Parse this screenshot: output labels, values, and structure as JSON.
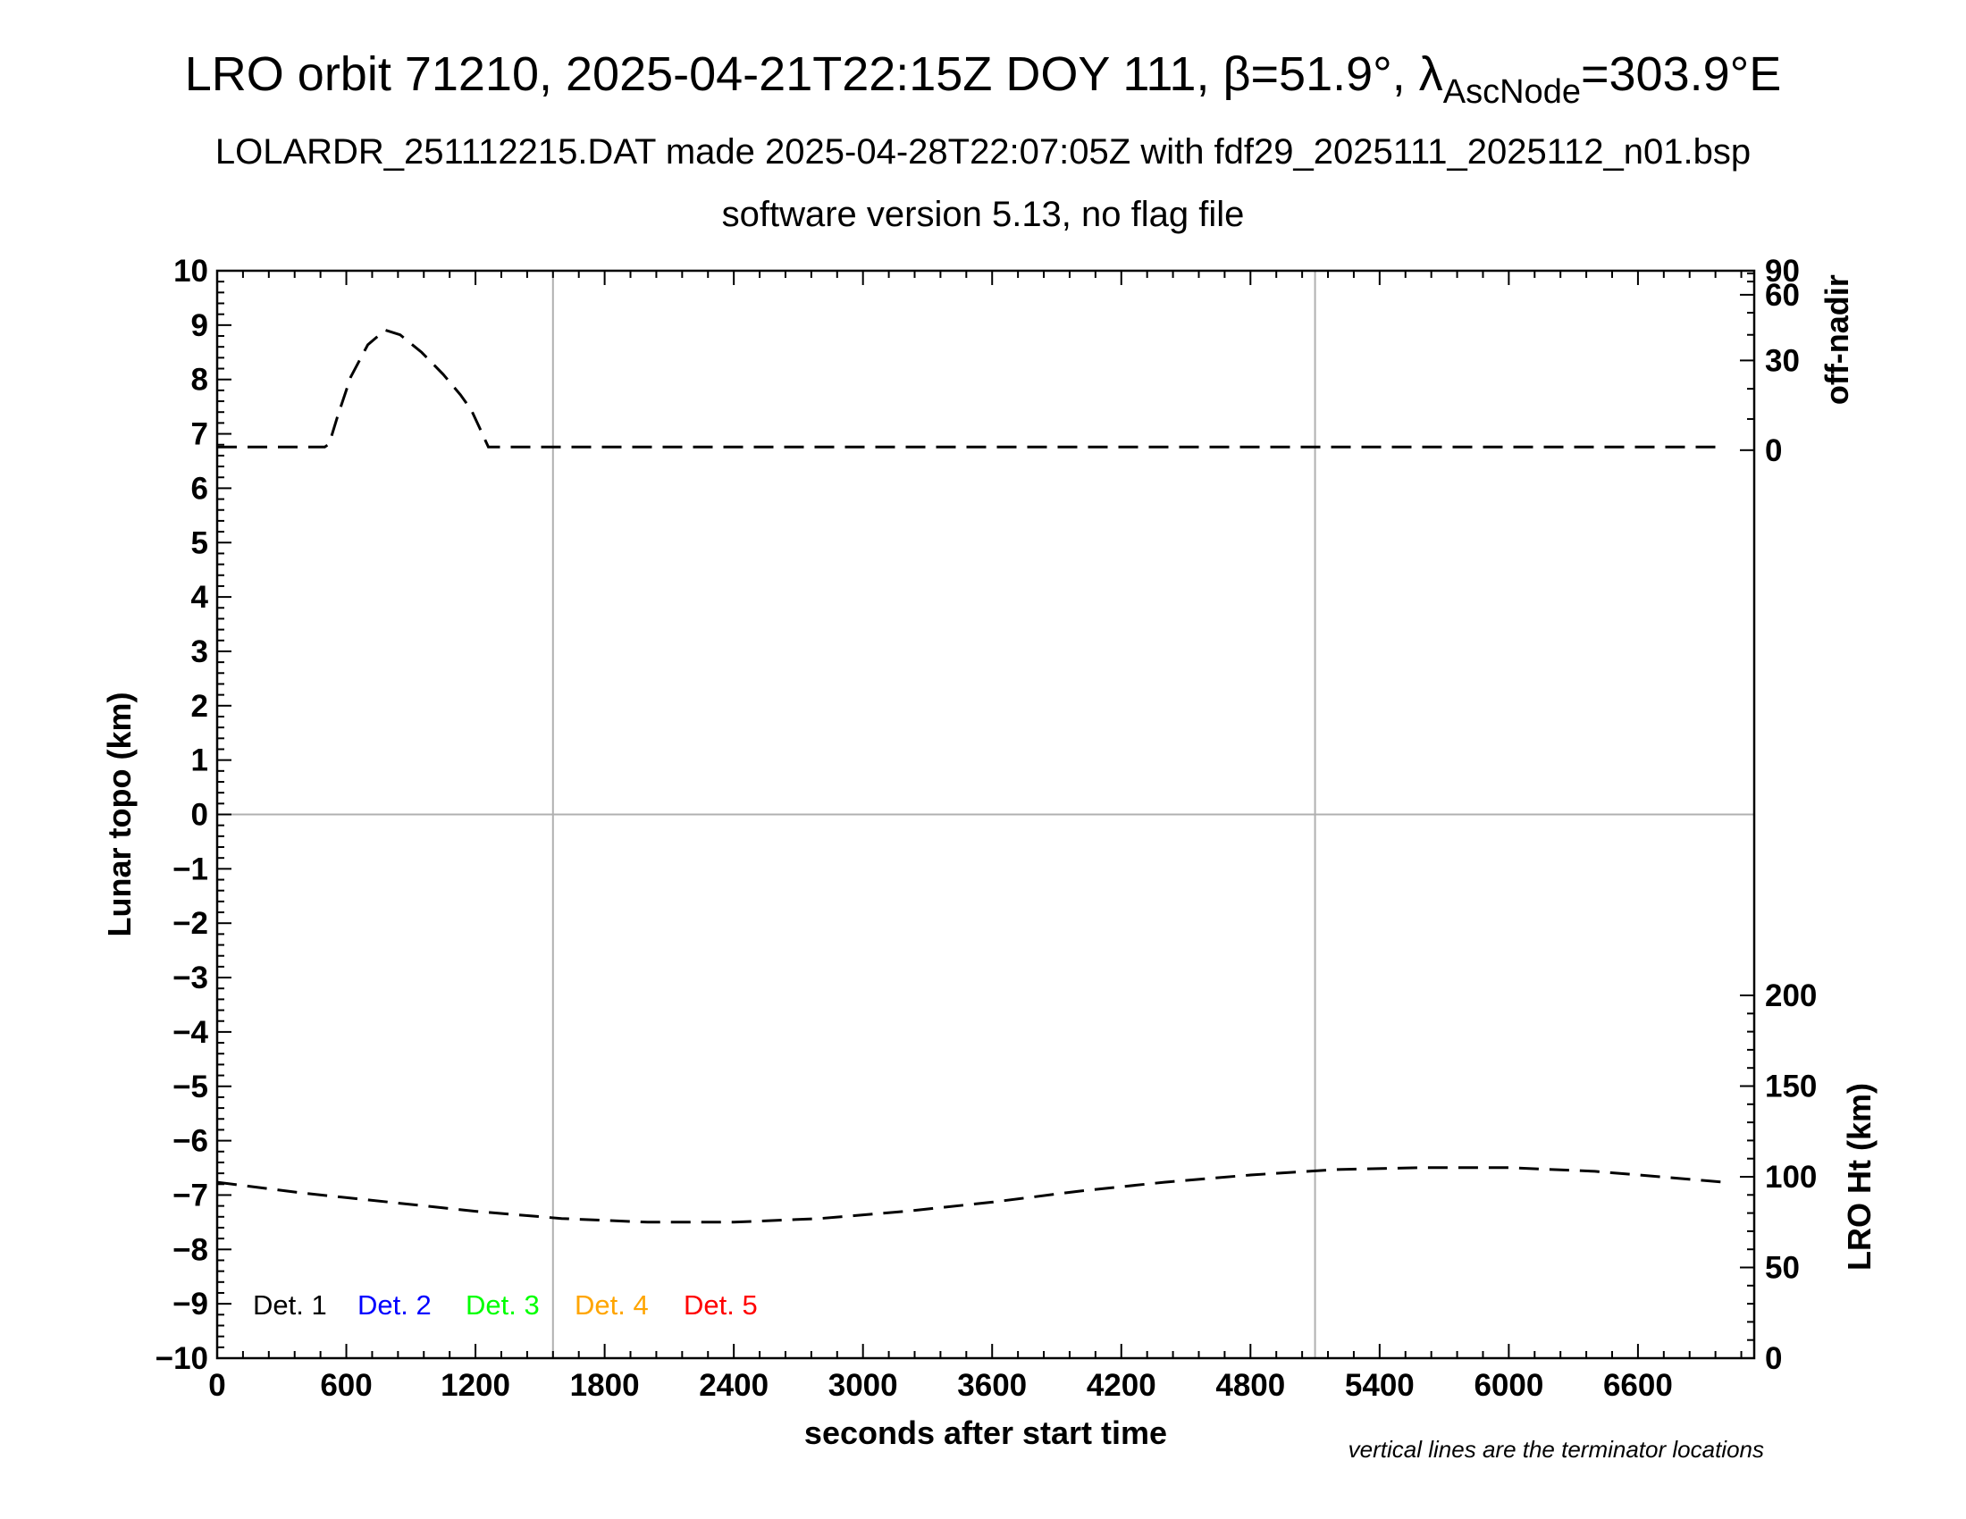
{
  "title": {
    "main": "LRO orbit 71210, 2025-04-21T22:15Z DOY 111, β=51.9°, λ",
    "subscript": "AscNode",
    "suffix": "=303.9°E"
  },
  "subtitle1": "LOLARDR_251112215.DAT made 2025-04-28T22:07:05Z with fdf29_2025111_2025112_n01.bsp",
  "subtitle2": "software version 5.13, no flag file",
  "note": "vertical lines are the terminator locations",
  "chart_data": {
    "type": "line",
    "xlabel": "seconds after start time",
    "ylabel": "Lunar topo (km)",
    "right_top_label": "off-nadir",
    "right_bottom_label": "LRO Ht (km)",
    "xlim": [
      0,
      7140
    ],
    "ylim": [
      -10,
      10
    ],
    "x_ticks": [
      0,
      600,
      1200,
      1800,
      2400,
      3000,
      3600,
      4200,
      4800,
      5400,
      6000,
      6600
    ],
    "y_ticks": [
      10,
      9,
      8,
      7,
      6,
      5,
      4,
      3,
      2,
      1,
      0,
      -1,
      -2,
      -3,
      -4,
      -5,
      -6,
      -7,
      -8,
      -9,
      -10
    ],
    "y_tick_labels": [
      "10",
      "9",
      "8",
      "7",
      "6",
      "5",
      "4",
      "3",
      "2",
      "1",
      "0",
      "−1",
      "−2",
      "−3",
      "−4",
      "−5",
      "−6",
      "−7",
      "−8",
      "−9",
      "−10"
    ],
    "off_nadir_ticks": [
      0,
      30,
      60,
      90
    ],
    "off_nadir_tick_labels": [
      "0",
      "30",
      "60",
      "90"
    ],
    "lro_ht_ticks": [
      0,
      50,
      100,
      150,
      200
    ],
    "lro_ht_tick_labels": [
      "0",
      "50",
      "100",
      "150",
      "200"
    ],
    "terminators": [
      1560,
      5100
    ],
    "grid": "vertical lines at terminators, horizontal line at 0",
    "legend": {
      "placement": "bottom-left",
      "entries": [
        {
          "label": "Det. 1",
          "color": "#000000"
        },
        {
          "label": "Det. 2",
          "color": "#0000ff"
        },
        {
          "label": "Det. 3",
          "color": "#00ff00"
        },
        {
          "label": "Det. 4",
          "color": "#ffa500"
        },
        {
          "label": "Det. 5",
          "color": "#ff0000"
        }
      ]
    },
    "series": [
      {
        "axis": "off-nadir",
        "style": "dashed",
        "color": "#000000",
        "x": [
          0,
          500,
          520,
          560,
          620,
          700,
          780,
          850,
          950,
          1050,
          1130,
          1180,
          1220,
          1260,
          1600,
          2400,
          3200,
          4000,
          4800,
          5600,
          6400,
          7000
        ],
        "y": [
          1,
          1,
          2,
          11,
          24,
          36,
          42,
          40,
          33,
          25,
          18,
          13,
          7,
          1,
          1,
          1,
          1,
          1,
          1,
          1,
          1,
          1
        ]
      },
      {
        "axis": "lro-ht",
        "style": "dashed",
        "color": "#000000",
        "x": [
          0,
          400,
          800,
          1200,
          1600,
          2000,
          2400,
          2800,
          3200,
          3600,
          4000,
          4400,
          4800,
          5200,
          5600,
          6000,
          6400,
          6800,
          7000
        ],
        "y": [
          97,
          91,
          86,
          81,
          77,
          75,
          75,
          77,
          81,
          86,
          92,
          97,
          101,
          104,
          105,
          105,
          103,
          99,
          97
        ]
      }
    ]
  }
}
